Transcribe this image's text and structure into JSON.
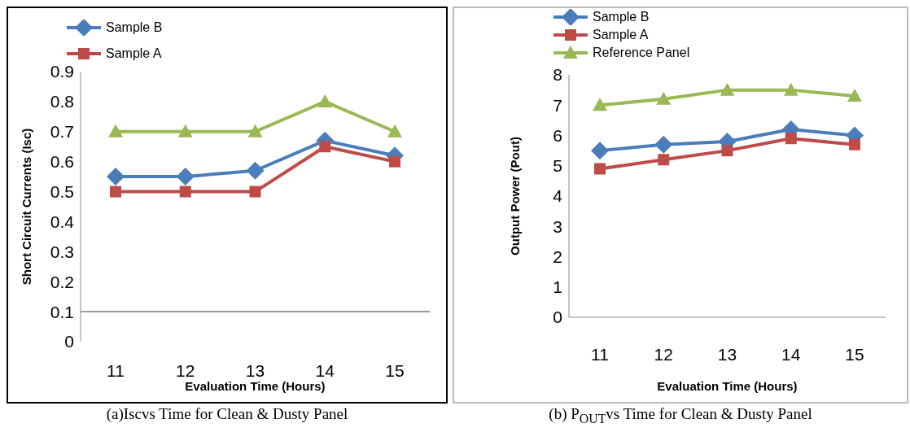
{
  "chart_data": [
    {
      "type": "line",
      "xlabel": "Evaluation Time (Hours)",
      "ylabel": "Short Circuit Currents (Isc)",
      "categories": [
        "11",
        "12",
        "13",
        "14",
        "15"
      ],
      "series": [
        {
          "name": "Sample B",
          "color": "#4a7ebb",
          "marker": "diamond",
          "values": [
            0.55,
            0.55,
            0.57,
            0.67,
            0.62
          ]
        },
        {
          "name": "Sample A",
          "color": "#be4b48",
          "marker": "square",
          "values": [
            0.5,
            0.5,
            0.5,
            0.65,
            0.6
          ]
        },
        {
          "color": "#98b954",
          "marker": "triangle",
          "values": [
            0.7,
            0.7,
            0.7,
            0.8,
            0.7
          ]
        }
      ],
      "ylim": [
        0,
        0.9
      ],
      "yticks": [
        0,
        0.1,
        0.2,
        0.3,
        0.4,
        0.5,
        0.6,
        0.7,
        0.8,
        0.9
      ],
      "grid": false,
      "legend": "top left",
      "ref_lines": [
        {
          "axis": "y",
          "value": 0.1,
          "color": "#999999"
        }
      ],
      "annotations": [
        "(a)Iscvs Time for Clean & Dusty Panel"
      ]
    },
    {
      "type": "line",
      "xlabel": "Evaluation Time (Hours)",
      "ylabel": "Output Power (Pout)",
      "categories": [
        "11",
        "12",
        "13",
        "14",
        "15"
      ],
      "series": [
        {
          "name": "Sample B",
          "color": "#4a7ebb",
          "marker": "diamond",
          "values": [
            5.5,
            5.7,
            5.8,
            6.2,
            6.0
          ]
        },
        {
          "name": "Sample A",
          "color": "#be4b48",
          "marker": "square",
          "values": [
            4.9,
            5.2,
            5.5,
            5.9,
            5.7
          ]
        },
        {
          "name": "Reference Panel",
          "color": "#98b954",
          "marker": "triangle",
          "values": [
            7.0,
            7.2,
            7.5,
            7.5,
            7.3
          ]
        }
      ],
      "ylim": [
        0,
        8
      ],
      "yticks": [
        0,
        1,
        2,
        3,
        4,
        5,
        6,
        7,
        8
      ],
      "grid": false,
      "legend": "top left",
      "annotations": [
        "(b) P$_{OUT}$vs Time for Clean & Dusty Panel"
      ]
    }
  ]
}
